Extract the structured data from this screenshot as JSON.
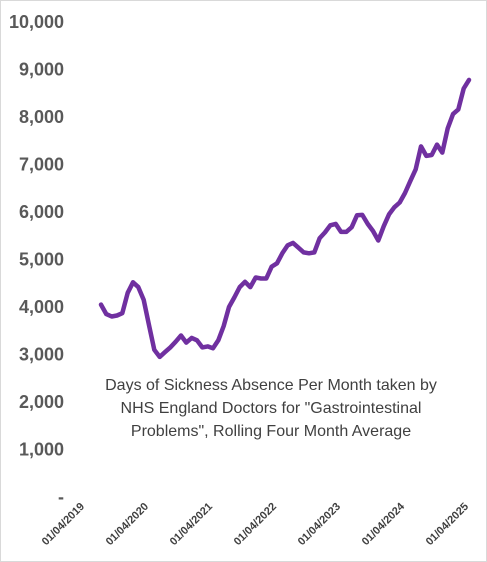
{
  "chart_data": {
    "type": "line",
    "title": "Days of Sickness Absence Per Month taken by\nNHS England Doctors for \"Gastrointestinal\nProblems\", Rolling Four Month Average",
    "xlabel": "",
    "ylabel": "",
    "ylim": [
      0,
      10000
    ],
    "y_ticks": [
      0,
      1000,
      2000,
      3000,
      4000,
      5000,
      6000,
      7000,
      8000,
      9000,
      10000
    ],
    "y_tick_labels": [
      "-",
      "1,000",
      "2,000",
      "3,000",
      "4,000",
      "5,000",
      "6,000",
      "7,000",
      "8,000",
      "9,000",
      "10,000"
    ],
    "x_range": [
      "2019-04-01",
      "2025-04-01"
    ],
    "x_tick_labels": [
      "01/04/2019",
      "01/04/2020",
      "01/04/2021",
      "01/04/2022",
      "01/04/2023",
      "01/04/2024",
      "01/04/2025"
    ],
    "grid": false,
    "line_color": "#7030A0",
    "series": [
      {
        "x": [
          "2019-07",
          "2019-08",
          "2019-09",
          "2019-10",
          "2019-11",
          "2019-12",
          "2020-01",
          "2020-02",
          "2020-03",
          "2020-04",
          "2020-05",
          "2020-06",
          "2020-07",
          "2020-08",
          "2020-09",
          "2020-10",
          "2020-11",
          "2020-12",
          "2021-01",
          "2021-02",
          "2021-03",
          "2021-04",
          "2021-05",
          "2021-06",
          "2021-07",
          "2021-08",
          "2021-09",
          "2021-10",
          "2021-11",
          "2021-12",
          "2022-01",
          "2022-02",
          "2022-03",
          "2022-04",
          "2022-05",
          "2022-06",
          "2022-07",
          "2022-08",
          "2022-09",
          "2022-10",
          "2022-11",
          "2022-12",
          "2023-01",
          "2023-02",
          "2023-03",
          "2023-04",
          "2023-05",
          "2023-06",
          "2023-07",
          "2023-08",
          "2023-09",
          "2023-10",
          "2023-11",
          "2023-12",
          "2024-01",
          "2024-02",
          "2024-03",
          "2024-04",
          "2024-05",
          "2024-06",
          "2024-07",
          "2024-08",
          "2024-09",
          "2024-10",
          "2024-11",
          "2024-12",
          "2025-01",
          "2025-02",
          "2025-03",
          "2025-04"
        ],
        "values": [
          4050,
          3850,
          3800,
          3820,
          3870,
          4300,
          4520,
          4420,
          4150,
          3620,
          3100,
          2950,
          3050,
          3150,
          3270,
          3400,
          3250,
          3350,
          3300,
          3150,
          3170,
          3130,
          3300,
          3600,
          4000,
          4200,
          4420,
          4530,
          4420,
          4620,
          4600,
          4600,
          4850,
          4920,
          5130,
          5300,
          5350,
          5250,
          5150,
          5130,
          5150,
          5450,
          5570,
          5720,
          5750,
          5580,
          5580,
          5680,
          5930,
          5940,
          5750,
          5600,
          5400,
          5700,
          5950,
          6100,
          6200,
          6400,
          6650,
          6900,
          7380,
          7180,
          7200,
          7420,
          7250,
          7760,
          8060,
          8160,
          8600,
          8780
        ]
      }
    ]
  }
}
